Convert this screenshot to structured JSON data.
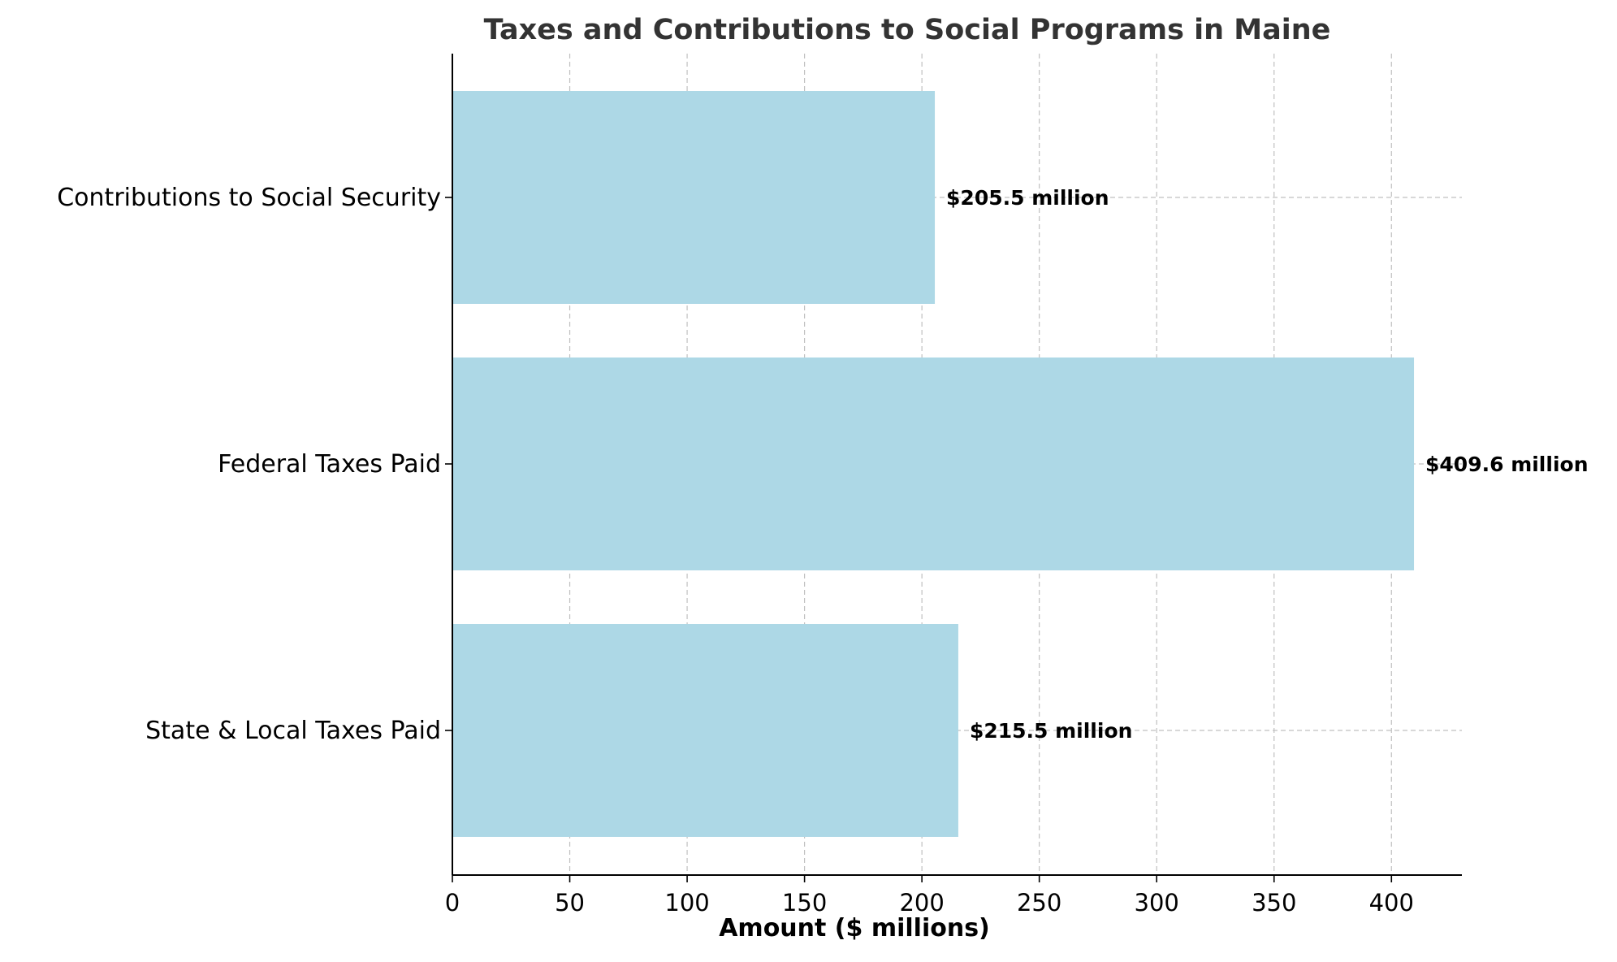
{
  "chart_data": {
    "type": "bar",
    "orientation": "horizontal",
    "title": "Taxes and Contributions to Social Programs in Maine",
    "xlabel": "Amount ($ millions)",
    "ylabel": "",
    "categories": [
      "State & Local Taxes Paid",
      "Federal Taxes Paid",
      "Contributions to Social Security"
    ],
    "values": [
      215.5,
      409.6,
      205.5
    ],
    "data_labels": [
      "$215.5 million",
      "$409.6 million",
      "$205.5 million"
    ],
    "xlim": [
      0,
      430
    ],
    "xticks": [
      0,
      50,
      100,
      150,
      200,
      250,
      300,
      350,
      400
    ],
    "grid": true,
    "colors": {
      "bar": "#add8e6",
      "grid": "#c0c0c0",
      "text": "#000000",
      "title": "#333333",
      "axis": "#000000"
    }
  }
}
